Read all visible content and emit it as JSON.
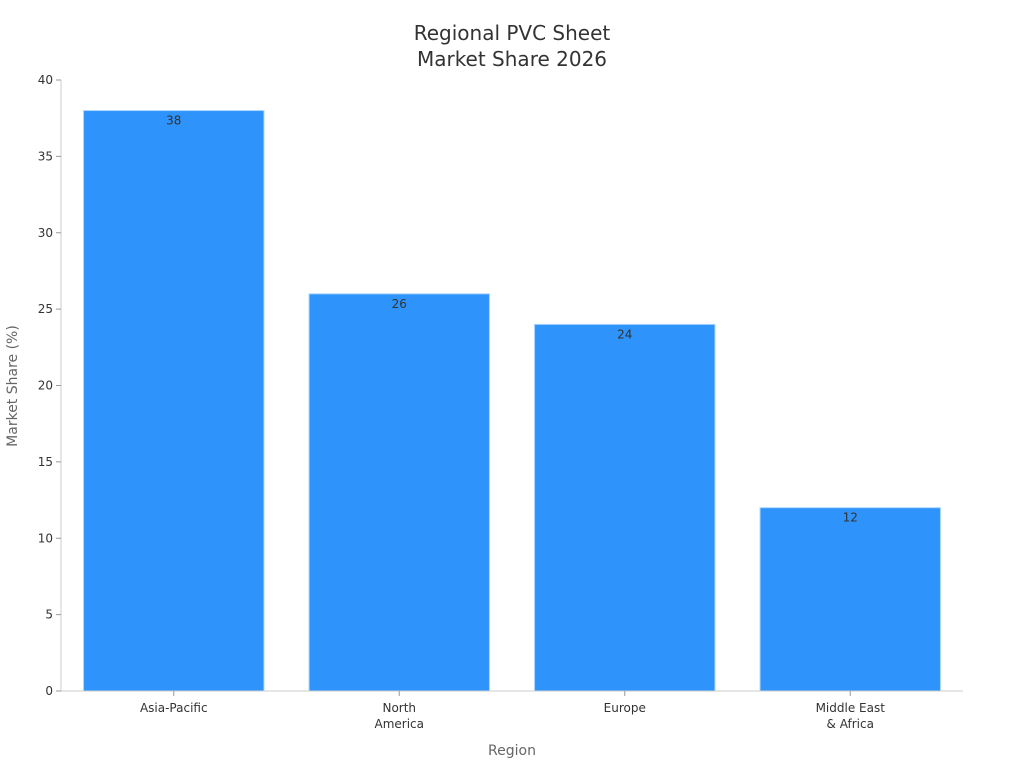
{
  "chart_data": {
    "type": "bar",
    "title": [
      "Regional PVC Sheet",
      "Market Share 2026"
    ],
    "xlabel": "Region",
    "ylabel": "Market Share (%)",
    "categories": [
      [
        "Asia-Pacific"
      ],
      [
        "North",
        "America"
      ],
      [
        "Europe"
      ],
      [
        "Middle East",
        "& Africa"
      ]
    ],
    "values": [
      38,
      26,
      24,
      12
    ],
    "data_labels": [
      "38",
      "26",
      "24",
      "12"
    ],
    "ylim": [
      0,
      40
    ],
    "yticks": [
      0,
      5,
      10,
      15,
      20,
      25,
      30,
      35,
      40
    ],
    "grid": false,
    "legend": "none",
    "colors": {
      "bar": "#2e93fa",
      "bar_edge": "#a8d4ff",
      "label": "#333333",
      "axis": "#cccccc"
    }
  }
}
